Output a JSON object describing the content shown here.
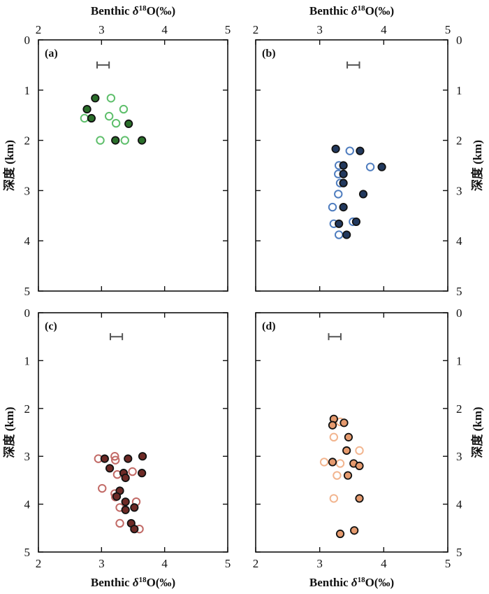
{
  "chart_data": [
    {
      "id": "a",
      "type": "scatter",
      "panel_label": "(a)",
      "top_xlabel": "Benthic δ18O(‰)",
      "ylabel": "深度 (km)",
      "ylabel_side": "left",
      "x_ticks": [
        "2",
        "3",
        "4",
        "5"
      ],
      "y_ticks": [
        "0",
        "1",
        "2",
        "3",
        "4",
        "5"
      ],
      "xlim": [
        2,
        5
      ],
      "ylim": [
        0,
        5
      ],
      "error_bar": {
        "x": [
          2.93,
          3.12
        ],
        "y": 0.5
      },
      "colors": {
        "filled": "#2a6e2a",
        "open": "#5fbf6c"
      },
      "filled": [
        [
          2.9,
          1.16
        ],
        [
          2.77,
          1.38
        ],
        [
          2.84,
          1.56
        ],
        [
          3.43,
          1.67
        ],
        [
          3.22,
          2.0
        ],
        [
          3.64,
          2.0
        ]
      ],
      "open": [
        [
          3.15,
          1.16
        ],
        [
          3.35,
          1.38
        ],
        [
          2.73,
          1.56
        ],
        [
          3.12,
          1.52
        ],
        [
          3.23,
          1.66
        ],
        [
          2.98,
          2.0
        ],
        [
          3.37,
          2.0
        ]
      ]
    },
    {
      "id": "b",
      "type": "scatter",
      "panel_label": "(b)",
      "top_xlabel": "Benthic δ18O(‰)",
      "ylabel": "深度 (km)",
      "ylabel_side": "right",
      "x_ticks": [
        "2",
        "3",
        "4",
        "5"
      ],
      "y_ticks": [
        "0",
        "1",
        "2",
        "3",
        "4",
        "5"
      ],
      "xlim": [
        2,
        5
      ],
      "ylim": [
        0,
        5
      ],
      "error_bar": {
        "x": [
          3.43,
          3.62
        ],
        "y": 0.5
      },
      "colors": {
        "filled": "#22395e",
        "open": "#4f7dbf"
      },
      "filled": [
        [
          3.25,
          2.17
        ],
        [
          3.63,
          2.21
        ],
        [
          3.97,
          2.53
        ],
        [
          3.37,
          2.5
        ],
        [
          3.37,
          2.67
        ],
        [
          3.37,
          2.85
        ],
        [
          3.68,
          3.07
        ],
        [
          3.37,
          3.33
        ],
        [
          3.57,
          3.62
        ],
        [
          3.3,
          3.66
        ],
        [
          3.42,
          3.88
        ]
      ],
      "open": [
        [
          3.47,
          2.21
        ],
        [
          3.79,
          2.53
        ],
        [
          3.3,
          2.5
        ],
        [
          3.29,
          2.67
        ],
        [
          3.32,
          2.85
        ],
        [
          3.29,
          3.07
        ],
        [
          3.2,
          3.33
        ],
        [
          3.52,
          3.62
        ],
        [
          3.22,
          3.66
        ],
        [
          3.3,
          3.88
        ]
      ]
    },
    {
      "id": "c",
      "type": "scatter",
      "panel_label": "(c)",
      "bottom_xlabel": "Benthic δ18O(‰)",
      "ylabel": "深度 (km)",
      "ylabel_side": "left",
      "x_ticks": [
        "2",
        "3",
        "4",
        "5"
      ],
      "y_ticks": [
        "0",
        "1",
        "2",
        "3",
        "4",
        "5"
      ],
      "xlim": [
        2,
        5
      ],
      "ylim": [
        0,
        5
      ],
      "error_bar": {
        "x": [
          3.14,
          3.33
        ],
        "y": 0.5
      },
      "colors": {
        "filled": "#6e2a26",
        "open": "#c26a66"
      },
      "filled": [
        [
          3.65,
          3.0
        ],
        [
          3.05,
          3.05
        ],
        [
          3.42,
          3.05
        ],
        [
          3.13,
          3.25
        ],
        [
          3.35,
          3.35
        ],
        [
          3.64,
          3.35
        ],
        [
          3.38,
          3.45
        ],
        [
          3.29,
          3.72
        ],
        [
          3.24,
          3.84
        ],
        [
          3.38,
          3.95
        ],
        [
          3.52,
          4.07
        ],
        [
          3.38,
          4.12
        ],
        [
          3.47,
          4.4
        ],
        [
          3.52,
          4.52
        ]
      ],
      "open": [
        [
          2.95,
          3.05
        ],
        [
          3.21,
          3.0
        ],
        [
          3.22,
          3.08
        ],
        [
          3.25,
          3.38
        ],
        [
          3.49,
          3.32
        ],
        [
          3.01,
          3.67
        ],
        [
          3.21,
          3.78
        ],
        [
          3.22,
          3.85
        ],
        [
          3.55,
          3.95
        ],
        [
          3.29,
          4.07
        ],
        [
          3.29,
          4.4
        ],
        [
          3.6,
          4.52
        ]
      ]
    },
    {
      "id": "d",
      "type": "scatter",
      "panel_label": "(d)",
      "bottom_xlabel": "Benthic δ18O(‰)",
      "ylabel": "深度 (km)",
      "ylabel_side": "right",
      "x_ticks": [
        "2",
        "3",
        "4",
        "5"
      ],
      "y_ticks": [
        "0",
        "1",
        "2",
        "3",
        "4",
        "5"
      ],
      "xlim": [
        2,
        5
      ],
      "ylim": [
        0,
        5
      ],
      "error_bar": {
        "x": [
          3.14,
          3.33
        ],
        "y": 0.5
      },
      "colors": {
        "filled": "#e59a6e",
        "open": "#f2b58f"
      },
      "filled": [
        [
          3.22,
          2.22
        ],
        [
          3.38,
          2.3
        ],
        [
          3.2,
          2.35
        ],
        [
          3.45,
          2.6
        ],
        [
          3.42,
          2.88
        ],
        [
          3.2,
          3.12
        ],
        [
          3.53,
          3.15
        ],
        [
          3.62,
          3.2
        ],
        [
          3.44,
          3.4
        ],
        [
          3.62,
          3.88
        ],
        [
          3.54,
          4.55
        ],
        [
          3.32,
          4.62
        ]
      ],
      "open": [
        [
          3.32,
          2.28
        ],
        [
          3.22,
          2.6
        ],
        [
          3.62,
          2.88
        ],
        [
          3.07,
          3.12
        ],
        [
          3.32,
          3.15
        ],
        [
          3.27,
          3.4
        ],
        [
          3.22,
          3.88
        ]
      ]
    }
  ]
}
